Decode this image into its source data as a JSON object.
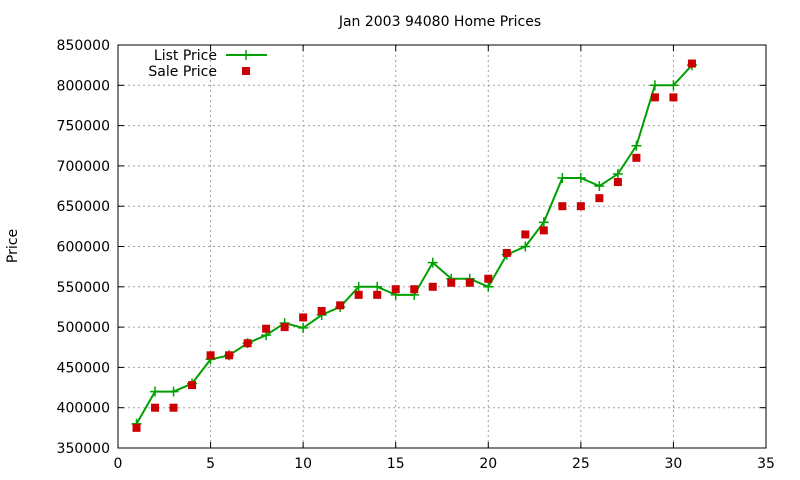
{
  "chart_data": {
    "type": "line",
    "title": "Jan 2003 94080 Home Prices",
    "xlabel": "",
    "ylabel": "Price",
    "xlim": [
      0,
      35
    ],
    "ylim": [
      350000,
      850000
    ],
    "x_ticks": [
      "0",
      "5",
      "10",
      "15",
      "20",
      "25",
      "30",
      "35"
    ],
    "y_ticks": [
      "350000",
      "400000",
      "450000",
      "500000",
      "550000",
      "600000",
      "650000",
      "700000",
      "750000",
      "800000",
      "850000"
    ],
    "grid": true,
    "legend_position": "top-left",
    "series": [
      {
        "name": "List Price",
        "style": "line-with-plus-markers",
        "color": "#00a000",
        "x": [
          1,
          2,
          3,
          4,
          5,
          6,
          7,
          8,
          9,
          10,
          11,
          12,
          13,
          14,
          15,
          16,
          17,
          18,
          19,
          20,
          21,
          22,
          23,
          24,
          25,
          26,
          27,
          28,
          29,
          30,
          31
        ],
        "y": [
          380000,
          420000,
          420000,
          430000,
          460000,
          465000,
          480000,
          490000,
          505000,
          499000,
          515000,
          525000,
          550000,
          550000,
          540000,
          540000,
          580000,
          560000,
          560000,
          550000,
          590000,
          600000,
          630000,
          685000,
          685000,
          675000,
          690000,
          725000,
          800000,
          800000,
          825000
        ]
      },
      {
        "name": "Sale Price",
        "style": "square-markers",
        "color": "#cc0000",
        "x": [
          1,
          2,
          3,
          4,
          5,
          6,
          7,
          8,
          9,
          10,
          11,
          12,
          13,
          14,
          15,
          16,
          17,
          18,
          19,
          20,
          21,
          22,
          23,
          24,
          25,
          26,
          27,
          28,
          29,
          30,
          31
        ],
        "y": [
          375000,
          400000,
          400000,
          428000,
          465000,
          465000,
          480000,
          498000,
          500000,
          512000,
          520000,
          527000,
          540000,
          540000,
          547000,
          547000,
          550000,
          555000,
          555000,
          560000,
          592000,
          615000,
          620000,
          650000,
          650000,
          660000,
          680000,
          710000,
          785000,
          785000,
          827000
        ]
      }
    ]
  }
}
